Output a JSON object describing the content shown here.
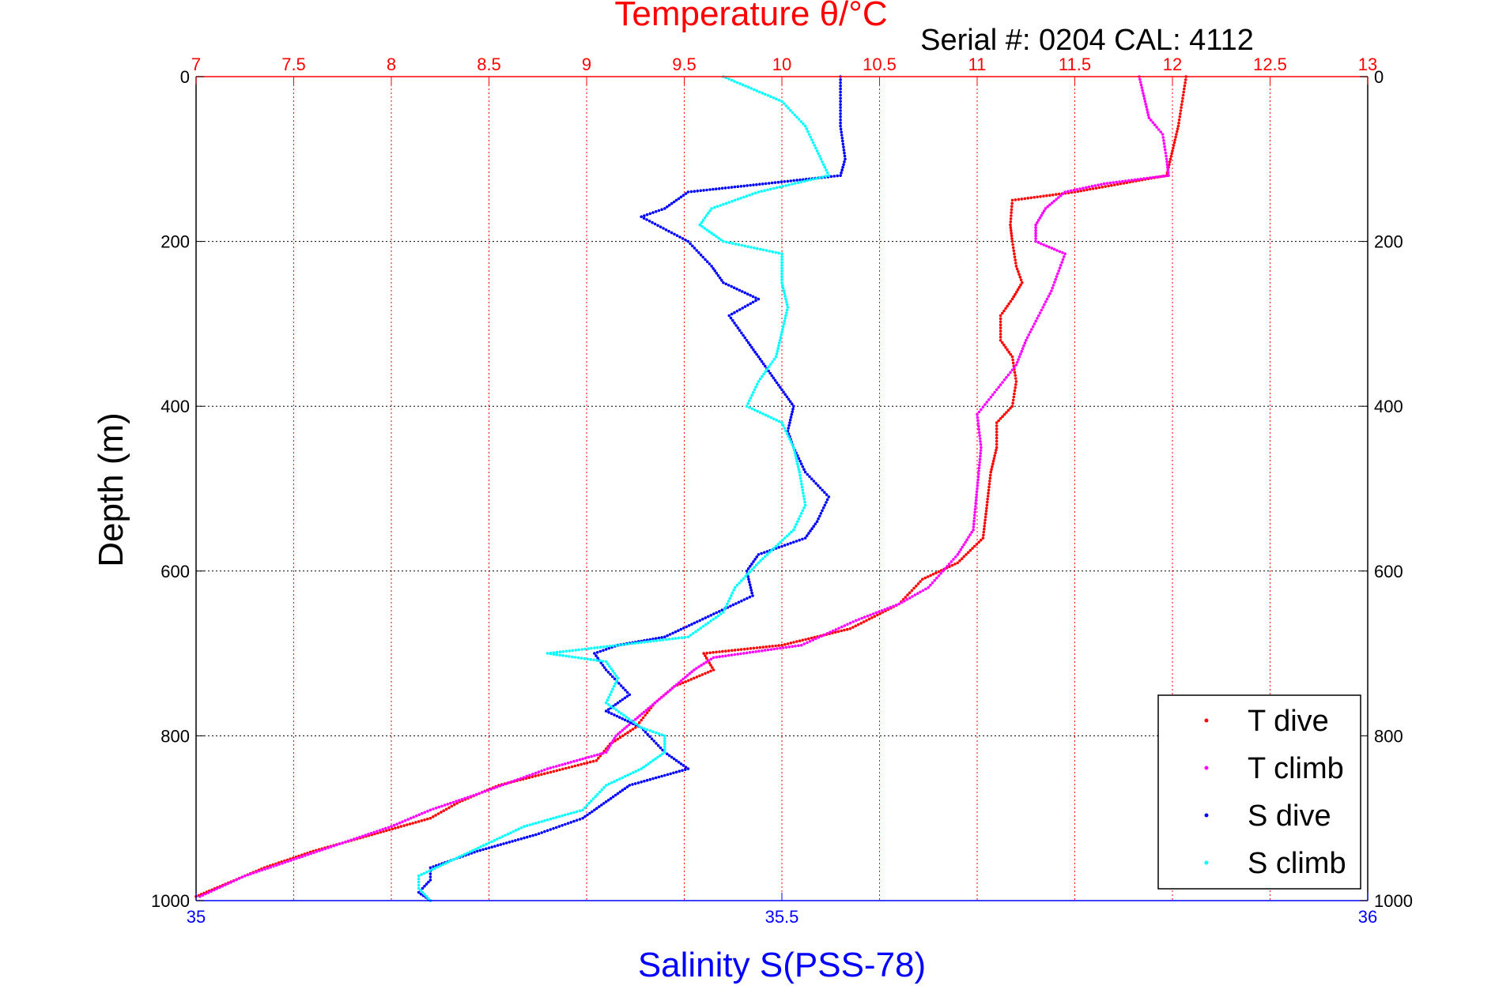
{
  "chart_data": {
    "type": "scatter",
    "title_top": "Temperature θ/°C",
    "annotation": "Serial #: 0204  CAL: 4112",
    "ylabel": "Depth (m)",
    "xlabel_bottom": "Salinity S(PSS-78)",
    "y_axis": {
      "min": 0,
      "max": 1000,
      "reversed": true,
      "ticks": [
        0,
        200,
        400,
        600,
        800,
        1000
      ]
    },
    "x_top_axis": {
      "name": "temperature",
      "min": 7,
      "max": 13,
      "ticks": [
        7,
        7.5,
        8,
        8.5,
        9,
        9.5,
        10,
        10.5,
        11,
        11.5,
        12,
        12.5,
        13
      ],
      "tick_labels": [
        "7",
        "7.5",
        "8",
        "8.5",
        "9",
        "9.5",
        "10",
        "10.5",
        "11",
        "11.5",
        "12",
        "12.5",
        "13"
      ]
    },
    "x_bottom_axis": {
      "name": "salinity",
      "min": 35,
      "max": 36,
      "ticks": [
        35,
        35.5,
        36
      ],
      "tick_labels": [
        "35",
        "35.5",
        "36"
      ]
    },
    "grid": true,
    "legend_position": "bottom-right",
    "colors": {
      "temp_axis": "#ff0000",
      "sal_axis": "#0000ff",
      "grid_temp": "#ff0000",
      "grid_depth": "#000000"
    },
    "series": [
      {
        "name": "T dive",
        "axis": "temperature",
        "color": "#ff0000",
        "points": [
          [
            12.07,
            0
          ],
          [
            12.05,
            30
          ],
          [
            12.03,
            60
          ],
          [
            12.0,
            90
          ],
          [
            11.97,
            120
          ],
          [
            11.5,
            140
          ],
          [
            11.18,
            150
          ],
          [
            11.17,
            180
          ],
          [
            11.18,
            200
          ],
          [
            11.2,
            230
          ],
          [
            11.23,
            250
          ],
          [
            11.18,
            270
          ],
          [
            11.12,
            290
          ],
          [
            11.12,
            320
          ],
          [
            11.18,
            340
          ],
          [
            11.2,
            370
          ],
          [
            11.18,
            400
          ],
          [
            11.1,
            420
          ],
          [
            11.1,
            450
          ],
          [
            11.07,
            480
          ],
          [
            11.05,
            520
          ],
          [
            11.03,
            560
          ],
          [
            10.9,
            590
          ],
          [
            10.72,
            610
          ],
          [
            10.6,
            640
          ],
          [
            10.35,
            670
          ],
          [
            10.0,
            690
          ],
          [
            9.6,
            700
          ],
          [
            9.65,
            720
          ],
          [
            9.45,
            740
          ],
          [
            9.35,
            760
          ],
          [
            9.25,
            790
          ],
          [
            9.12,
            810
          ],
          [
            9.05,
            830
          ],
          [
            8.55,
            860
          ],
          [
            8.35,
            880
          ],
          [
            8.2,
            900
          ],
          [
            7.9,
            920
          ],
          [
            7.6,
            940
          ],
          [
            7.35,
            960
          ],
          [
            7.15,
            980
          ],
          [
            7.0,
            995
          ]
        ]
      },
      {
        "name": "T climb",
        "axis": "temperature",
        "color": "#ff00ff",
        "points": [
          [
            11.83,
            0
          ],
          [
            11.85,
            20
          ],
          [
            11.88,
            50
          ],
          [
            11.95,
            70
          ],
          [
            11.97,
            100
          ],
          [
            11.98,
            120
          ],
          [
            11.65,
            130
          ],
          [
            11.45,
            140
          ],
          [
            11.35,
            160
          ],
          [
            11.3,
            180
          ],
          [
            11.3,
            200
          ],
          [
            11.45,
            215
          ],
          [
            11.38,
            260
          ],
          [
            11.25,
            320
          ],
          [
            11.2,
            350
          ],
          [
            11.1,
            380
          ],
          [
            11.0,
            410
          ],
          [
            11.02,
            450
          ],
          [
            11.0,
            500
          ],
          [
            10.98,
            550
          ],
          [
            10.9,
            580
          ],
          [
            10.75,
            620
          ],
          [
            10.6,
            640
          ],
          [
            10.38,
            660
          ],
          [
            10.1,
            690
          ],
          [
            9.65,
            705
          ],
          [
            9.55,
            720
          ],
          [
            9.45,
            740
          ],
          [
            9.35,
            760
          ],
          [
            9.25,
            780
          ],
          [
            9.15,
            800
          ],
          [
            9.1,
            820
          ],
          [
            8.8,
            840
          ],
          [
            8.45,
            870
          ],
          [
            8.2,
            890
          ],
          [
            8.0,
            910
          ],
          [
            7.75,
            930
          ],
          [
            7.5,
            950
          ],
          [
            7.25,
            970
          ],
          [
            7.02,
            995
          ]
        ]
      },
      {
        "name": "S dive",
        "axis": "salinity",
        "color": "#0000ff",
        "points": [
          [
            35.55,
            0
          ],
          [
            35.55,
            30
          ],
          [
            35.55,
            60
          ],
          [
            35.554,
            100
          ],
          [
            35.55,
            120
          ],
          [
            35.42,
            140
          ],
          [
            35.4,
            160
          ],
          [
            35.38,
            170
          ],
          [
            35.42,
            200
          ],
          [
            35.44,
            230
          ],
          [
            35.45,
            250
          ],
          [
            35.48,
            270
          ],
          [
            35.455,
            290
          ],
          [
            35.47,
            320
          ],
          [
            35.48,
            340
          ],
          [
            35.49,
            360
          ],
          [
            35.5,
            380
          ],
          [
            35.51,
            400
          ],
          [
            35.505,
            430
          ],
          [
            35.51,
            450
          ],
          [
            35.52,
            480
          ],
          [
            35.54,
            510
          ],
          [
            35.53,
            540
          ],
          [
            35.52,
            560
          ],
          [
            35.48,
            580
          ],
          [
            35.47,
            600
          ],
          [
            35.475,
            630
          ],
          [
            35.43,
            660
          ],
          [
            35.4,
            680
          ],
          [
            35.36,
            690
          ],
          [
            35.34,
            700
          ],
          [
            35.35,
            720
          ],
          [
            35.37,
            750
          ],
          [
            35.35,
            770
          ],
          [
            35.38,
            790
          ],
          [
            35.4,
            820
          ],
          [
            35.42,
            840
          ],
          [
            35.37,
            860
          ],
          [
            35.35,
            880
          ],
          [
            35.33,
            900
          ],
          [
            35.29,
            920
          ],
          [
            35.24,
            940
          ],
          [
            35.2,
            960
          ],
          [
            35.2,
            975
          ],
          [
            35.19,
            990
          ],
          [
            35.2,
            1000
          ]
        ]
      },
      {
        "name": "S climb",
        "axis": "salinity",
        "color": "#00ffff",
        "points": [
          [
            35.45,
            0
          ],
          [
            35.5,
            30
          ],
          [
            35.52,
            60
          ],
          [
            35.53,
            90
          ],
          [
            35.54,
            120
          ],
          [
            35.48,
            140
          ],
          [
            35.44,
            160
          ],
          [
            35.43,
            180
          ],
          [
            35.45,
            200
          ],
          [
            35.5,
            215
          ],
          [
            35.5,
            250
          ],
          [
            35.505,
            280
          ],
          [
            35.5,
            310
          ],
          [
            35.495,
            340
          ],
          [
            35.48,
            370
          ],
          [
            35.47,
            400
          ],
          [
            35.5,
            420
          ],
          [
            35.51,
            450
          ],
          [
            35.515,
            480
          ],
          [
            35.52,
            520
          ],
          [
            35.51,
            550
          ],
          [
            35.48,
            590
          ],
          [
            35.46,
            620
          ],
          [
            35.45,
            650
          ],
          [
            35.42,
            680
          ],
          [
            35.3,
            700
          ],
          [
            35.35,
            710
          ],
          [
            35.36,
            730
          ],
          [
            35.35,
            760
          ],
          [
            35.38,
            790
          ],
          [
            35.4,
            800
          ],
          [
            35.4,
            820
          ],
          [
            35.38,
            840
          ],
          [
            35.35,
            860
          ],
          [
            35.33,
            890
          ],
          [
            35.28,
            910
          ],
          [
            35.25,
            930
          ],
          [
            35.22,
            950
          ],
          [
            35.19,
            970
          ],
          [
            35.19,
            985
          ],
          [
            35.2,
            1000
          ]
        ]
      }
    ]
  }
}
